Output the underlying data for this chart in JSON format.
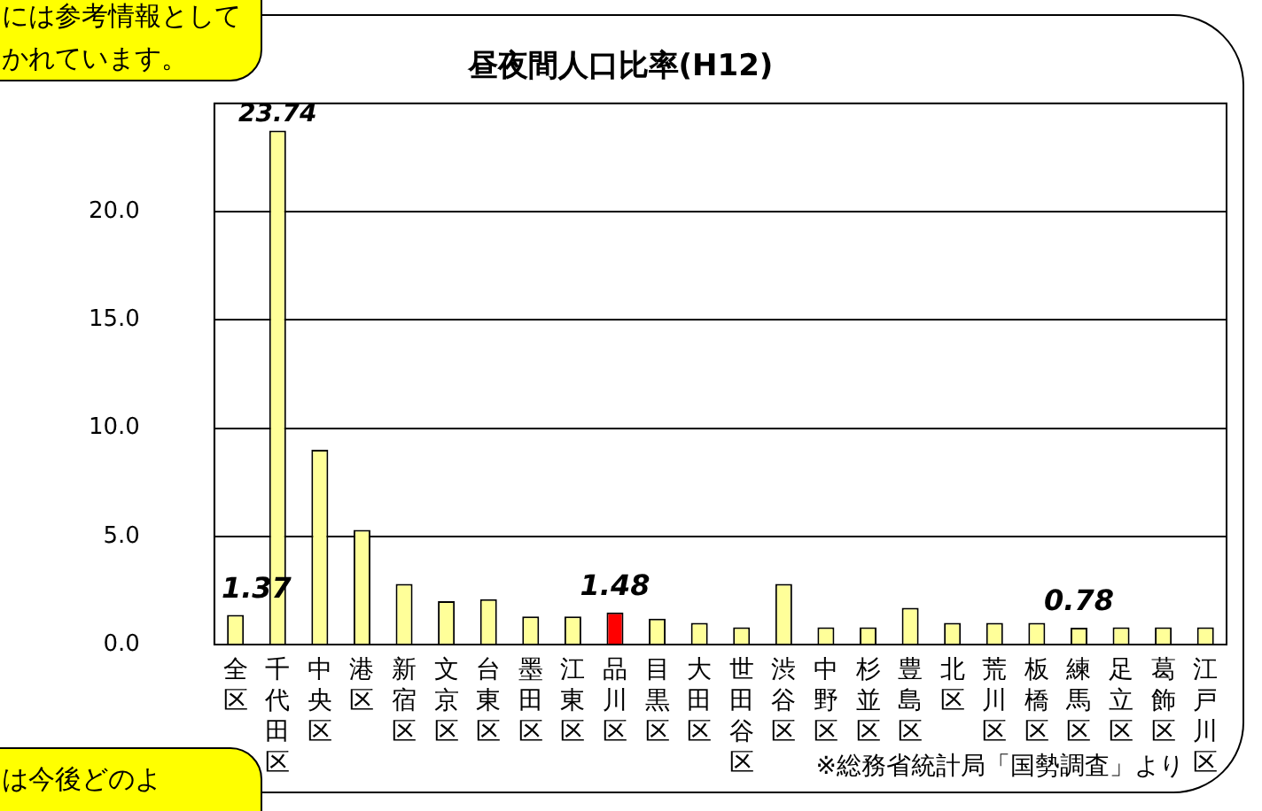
{
  "chart_data": {
    "type": "bar",
    "title": "昼夜間人口比率(H12)",
    "categories": [
      "全区",
      "千代田区",
      "中央区",
      "港区",
      "新宿区",
      "文京区",
      "台東区",
      "墨田区",
      "江東区",
      "品川区",
      "目黒区",
      "大田区",
      "世田谷区",
      "渋谷区",
      "中野区",
      "杉並区",
      "豊島区",
      "北区",
      "荒川区",
      "板橋区",
      "練馬区",
      "足立区",
      "葛飾区",
      "江戸川区"
    ],
    "values": [
      1.37,
      23.74,
      9.0,
      5.3,
      2.8,
      2.0,
      2.1,
      1.3,
      1.3,
      1.48,
      1.2,
      1.0,
      0.8,
      2.8,
      0.8,
      0.8,
      1.7,
      1.0,
      1.0,
      1.0,
      0.78,
      0.8,
      0.8,
      0.8
    ],
    "colors": [
      "#ffff99",
      "#ffff99",
      "#ffff99",
      "#ffff99",
      "#ffff99",
      "#ffff99",
      "#ffff99",
      "#ffff99",
      "#ffff99",
      "#ff0000",
      "#ffff99",
      "#ffff99",
      "#ffff99",
      "#ffff99",
      "#ffff99",
      "#ffff99",
      "#ffff99",
      "#ffff99",
      "#ffff99",
      "#ffff99",
      "#ffff99",
      "#ffff99",
      "#ffff99",
      "#ffff99"
    ],
    "value_labels": [
      "1.37",
      "23.74",
      null,
      null,
      null,
      null,
      null,
      null,
      null,
      "1.48",
      null,
      null,
      null,
      null,
      null,
      null,
      null,
      null,
      null,
      null,
      "0.78",
      null,
      null,
      null
    ],
    "ylim": [
      0,
      25
    ],
    "yticks": [
      {
        "value": 0,
        "label": "0.0"
      },
      {
        "value": 5,
        "label": "5.0"
      },
      {
        "value": 10,
        "label": "10.0"
      },
      {
        "value": 15,
        "label": "15.0"
      },
      {
        "value": 20,
        "label": "20.0"
      }
    ],
    "grid": "y",
    "legend": false,
    "annotations": [
      "には参考情報としてかれています。",
      "は今後どのよ",
      "※総務省統計局「国勢調査」より"
    ]
  }
}
